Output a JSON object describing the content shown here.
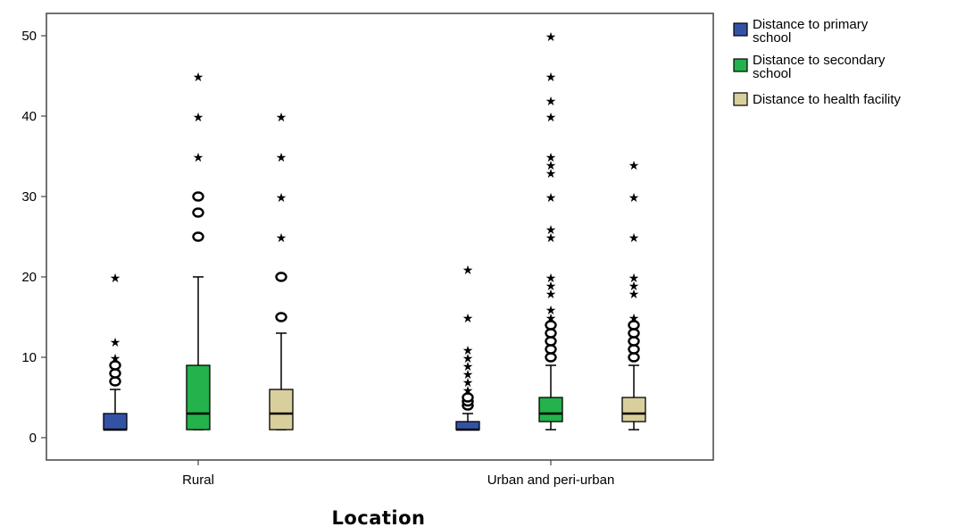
{
  "chart_data": {
    "type": "boxplot",
    "xlabel": "Location",
    "ylabel": "",
    "ylim": [
      -2.7,
      52.7
    ],
    "yticks": [
      0,
      10,
      20,
      30,
      40,
      50
    ],
    "categories": [
      "Rural",
      "Urban and peri-urban"
    ],
    "legend_position": "right",
    "series": [
      {
        "name": "Distance to primary school",
        "color": "#3452a5",
        "boxes": [
          {
            "min": 1,
            "q1": 1,
            "median": 1,
            "q3": 3,
            "max": 6,
            "outliers": [
              7,
              8,
              9
            ],
            "extremes": [
              10,
              12,
              20
            ]
          },
          {
            "min": 1,
            "q1": 1,
            "median": 1,
            "q3": 2,
            "max": 3,
            "outliers": [
              4,
              4.5,
              5
            ],
            "extremes": [
              6,
              7,
              8,
              9,
              10,
              11,
              15,
              21
            ]
          }
        ]
      },
      {
        "name": "Distance to secondary school",
        "color": "#23b24b",
        "boxes": [
          {
            "min": 1,
            "q1": 1,
            "median": 3,
            "q3": 9,
            "max": 20,
            "outliers": [
              25,
              28,
              30
            ],
            "extremes": [
              35,
              40,
              45
            ]
          },
          {
            "min": 1,
            "q1": 2,
            "median": 3,
            "q3": 5,
            "max": 9,
            "outliers": [
              10,
              11,
              12,
              13,
              14
            ],
            "extremes": [
              15,
              16,
              18,
              19,
              20,
              25,
              26,
              30,
              33,
              34,
              35,
              40,
              42,
              45,
              50
            ]
          }
        ]
      },
      {
        "name": "Distance to health facility",
        "color": "#d8cf9c",
        "boxes": [
          {
            "min": 1,
            "q1": 1,
            "median": 3,
            "q3": 6,
            "max": 13,
            "outliers": [
              15,
              20
            ],
            "extremes": [
              25,
              30,
              35,
              40
            ]
          },
          {
            "min": 1,
            "q1": 2,
            "median": 3,
            "q3": 5,
            "max": 9,
            "outliers": [
              10,
              11,
              12,
              13,
              14
            ],
            "extremes": [
              15,
              18,
              19,
              20,
              25,
              30,
              34
            ]
          }
        ]
      }
    ]
  }
}
